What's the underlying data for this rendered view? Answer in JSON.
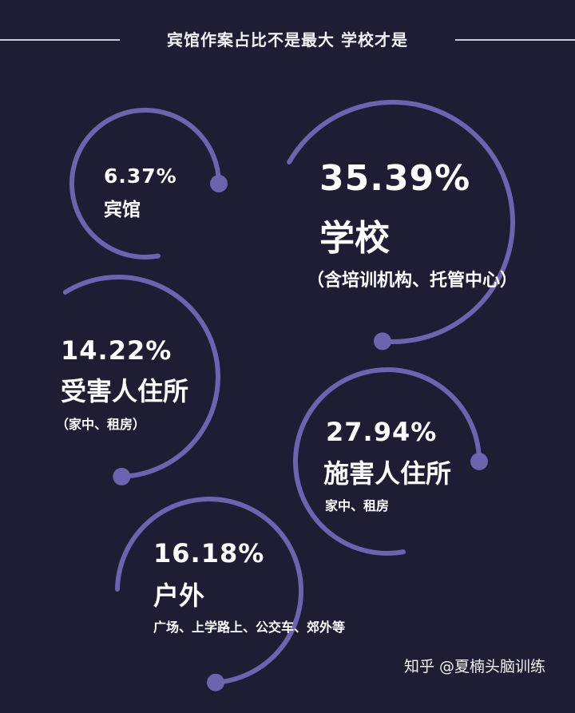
{
  "title": "宾馆作案占比不是最大 学校才是",
  "accent_color": "#6d64b0",
  "chart_data": {
    "type": "pie",
    "title": "宾馆作案占比不是最大 学校才是",
    "categories": [
      "宾馆",
      "学校",
      "受害人住所",
      "施害人住所",
      "户外"
    ],
    "values": [
      6.37,
      35.39,
      14.22,
      27.94,
      16.18
    ],
    "unit": "%",
    "slices": [
      {
        "category": "宾馆",
        "value": 6.37,
        "value_label": "6.37%",
        "note": ""
      },
      {
        "category": "学校",
        "value": 35.39,
        "value_label": "35.39%",
        "note": "（含培训机构、托管中心）"
      },
      {
        "category": "受害人住所",
        "value": 14.22,
        "value_label": "14.22%",
        "note": "（家中、租房）"
      },
      {
        "category": "施害人住所",
        "value": 27.94,
        "value_label": "27.94%",
        "note": "家中、租房"
      },
      {
        "category": "户外",
        "value": 16.18,
        "value_label": "16.18%",
        "note": "广场、上学路上、公交车、郊外等"
      }
    ]
  },
  "footer": {
    "text": "知乎 @夏楠头脑训练"
  }
}
